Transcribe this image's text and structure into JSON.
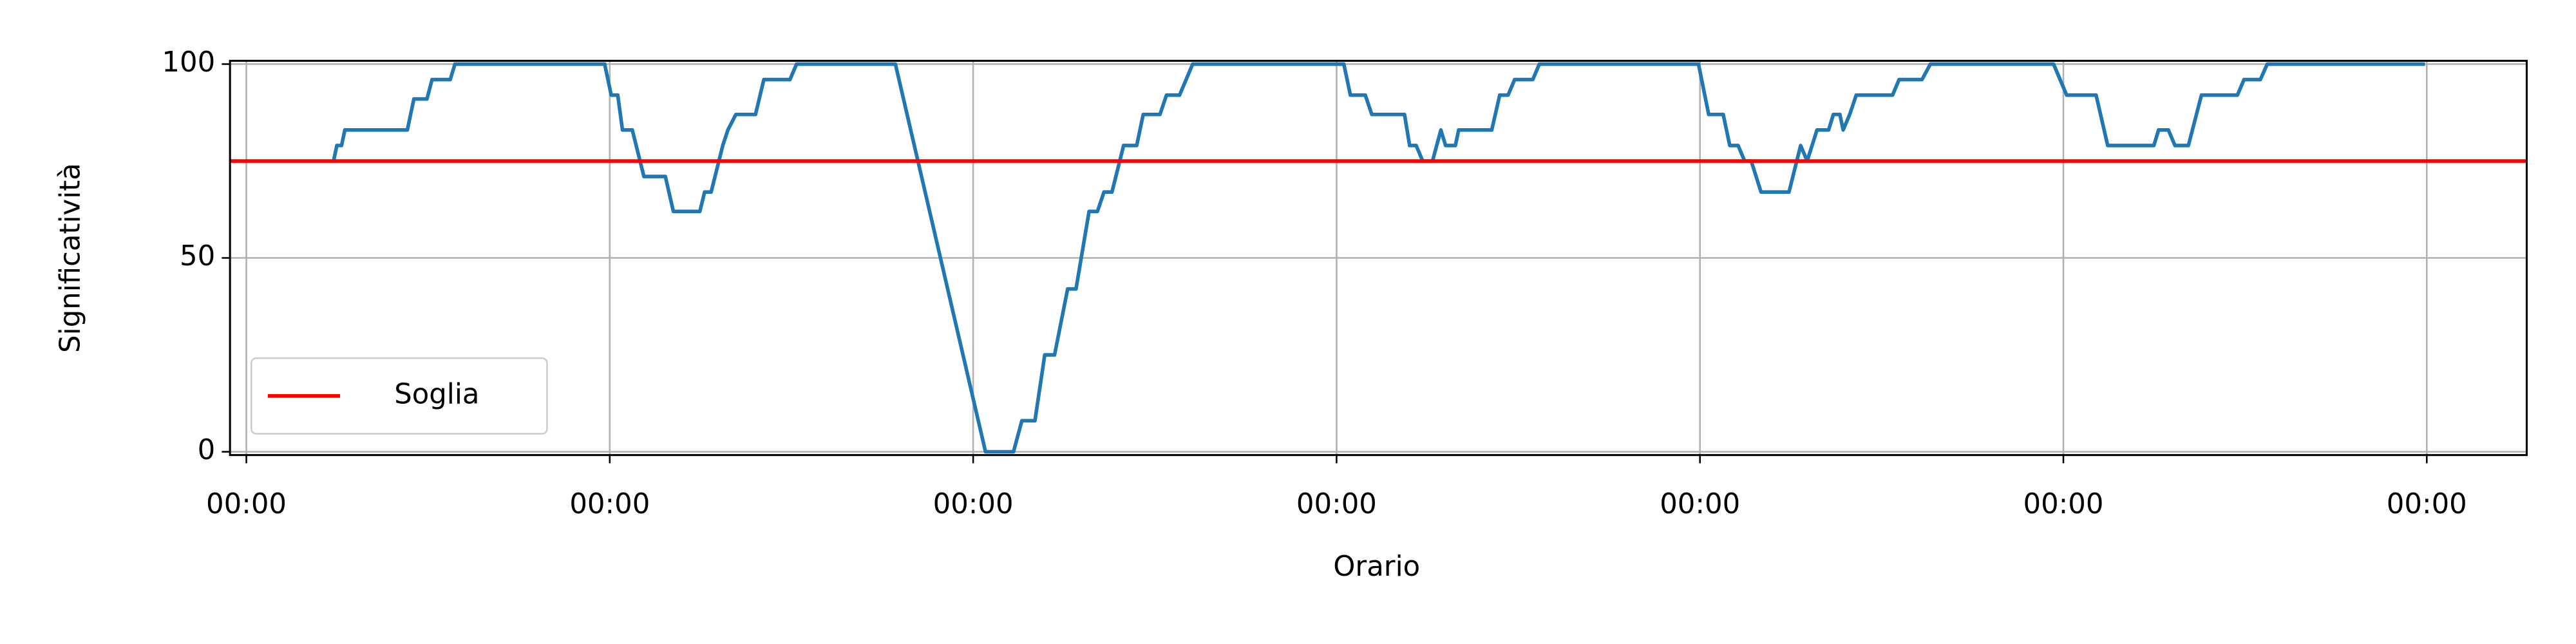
{
  "chart_data": {
    "type": "line",
    "xlabel": "Orario",
    "ylabel": "Significatività",
    "xlim": [
      -0.045,
      6.275
    ],
    "ylim": [
      -0.85,
      100.85
    ],
    "xticks": [
      {
        "value": 0,
        "label": "00:00"
      },
      {
        "value": 1,
        "label": "00:00"
      },
      {
        "value": 2,
        "label": "00:00"
      },
      {
        "value": 3,
        "label": "00:00"
      },
      {
        "value": 4,
        "label": "00:00"
      },
      {
        "value": 5,
        "label": "00:00"
      },
      {
        "value": 6,
        "label": "00:00"
      }
    ],
    "yticks": [
      0,
      50,
      100
    ],
    "grid": true,
    "legend": "lower left",
    "series": [
      {
        "color": "#1f77b4",
        "x": [
          0.24,
          0.249,
          0.262,
          0.271,
          0.443,
          0.461,
          0.497,
          0.511,
          0.561,
          0.574,
          0.986,
          1.004,
          1.022,
          1.035,
          1.062,
          1.094,
          1.153,
          1.175,
          1.248,
          1.261,
          1.279,
          1.311,
          1.325,
          1.347,
          1.401,
          1.424,
          1.496,
          1.514,
          1.786,
          2.034,
          2.111,
          2.134,
          2.17,
          2.197,
          2.224,
          2.26,
          2.283,
          2.319,
          2.342,
          2.36,
          2.382,
          2.414,
          2.45,
          2.468,
          2.514,
          2.532,
          2.568,
          2.604,
          3.02,
          3.038,
          3.079,
          3.097,
          3.187,
          3.201,
          3.219,
          3.237,
          3.264,
          3.287,
          3.3,
          3.327,
          3.336,
          3.427,
          3.449,
          3.472,
          3.49,
          3.54,
          3.558,
          3.996,
          4.024,
          4.064,
          4.082,
          4.105,
          4.123,
          4.141,
          4.168,
          4.245,
          4.277,
          4.295,
          4.322,
          4.354,
          4.367,
          4.385,
          4.394,
          4.412,
          4.43,
          4.53,
          4.548,
          4.611,
          4.634,
          4.973,
          4.991,
          5.009,
          5.09,
          5.122,
          5.249,
          5.262,
          5.289,
          5.307,
          5.344,
          5.38,
          5.479,
          5.497,
          5.542,
          5.561,
          5.995
        ],
        "values": [
          75,
          79,
          79,
          83,
          83,
          91,
          91,
          96,
          96,
          100,
          100,
          92,
          92,
          83,
          83,
          71,
          71,
          62,
          62,
          67,
          67,
          79,
          83,
          87,
          87,
          96,
          96,
          100,
          100,
          0,
          0,
          8,
          8,
          25,
          25,
          42,
          42,
          62,
          62,
          67,
          67,
          79,
          79,
          87,
          87,
          92,
          92,
          100,
          100,
          92,
          92,
          87,
          87,
          79,
          79,
          75,
          75,
          83,
          79,
          79,
          83,
          83,
          92,
          92,
          96,
          96,
          100,
          100,
          87,
          87,
          79,
          79,
          75,
          75,
          67,
          67,
          79,
          75,
          83,
          83,
          87,
          87,
          83,
          87,
          92,
          92,
          96,
          96,
          100,
          100,
          96,
          92,
          92,
          79,
          79,
          83,
          83,
          79,
          79,
          92,
          92,
          96,
          96,
          100,
          100
        ]
      }
    ],
    "threshold": {
      "name": "Soglia",
      "value": 75,
      "color": "#ff0000"
    }
  }
}
